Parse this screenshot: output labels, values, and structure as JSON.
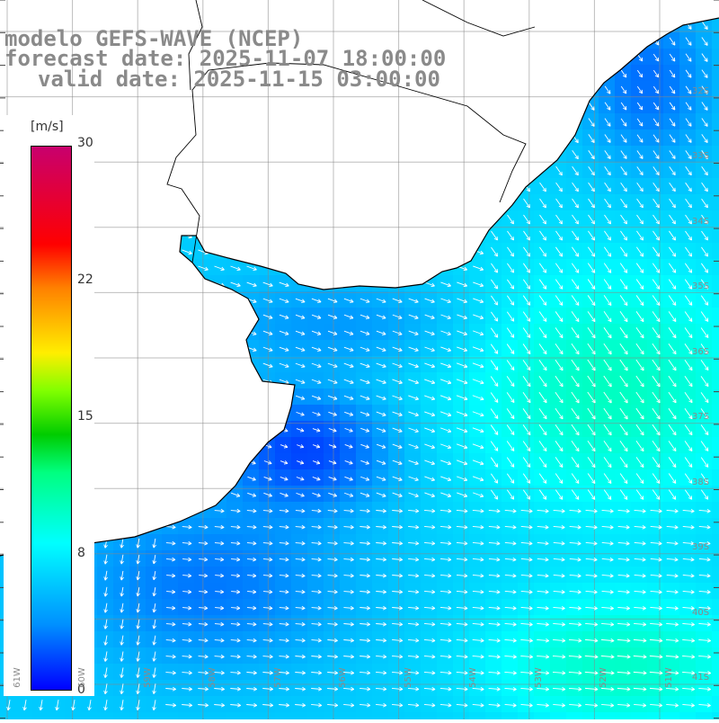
{
  "title": {
    "line1": "modelo GEFS-WAVE (NCEP)",
    "line2": "forecast date: 2025-11-07 18:00:00",
    "line3": "valid date: 2025-11-15 03:00:00"
  },
  "colorbar": {
    "units": "[m/s]",
    "ticks": [
      {
        "value": 30,
        "label": "30"
      },
      {
        "value": 22,
        "label": "22"
      },
      {
        "value": 15,
        "label": "15"
      },
      {
        "value": 8,
        "label": "8"
      },
      {
        "value": 0,
        "label": "0"
      }
    ],
    "colors": [
      "#0000ff",
      "#00a0ff",
      "#00ffff",
      "#00ff80",
      "#00cc00",
      "#80ff00",
      "#ffff00",
      "#ff8000",
      "#ff0000",
      "#cc0066"
    ]
  },
  "lat_labels": [
    "32S",
    "33S",
    "34S",
    "35S",
    "36S",
    "37S",
    "38S",
    "39S",
    "40S",
    "41S"
  ],
  "lon_labels": [
    "61W",
    "60W",
    "59W",
    "58W",
    "57W",
    "56W",
    "55W",
    "54W",
    "53W",
    "52W",
    "51W"
  ],
  "colors": {
    "land": "#ffffff",
    "coastline": "#000000",
    "grid": "#888888",
    "arrows": "#ffffff",
    "title": "#8a8a8a"
  }
}
